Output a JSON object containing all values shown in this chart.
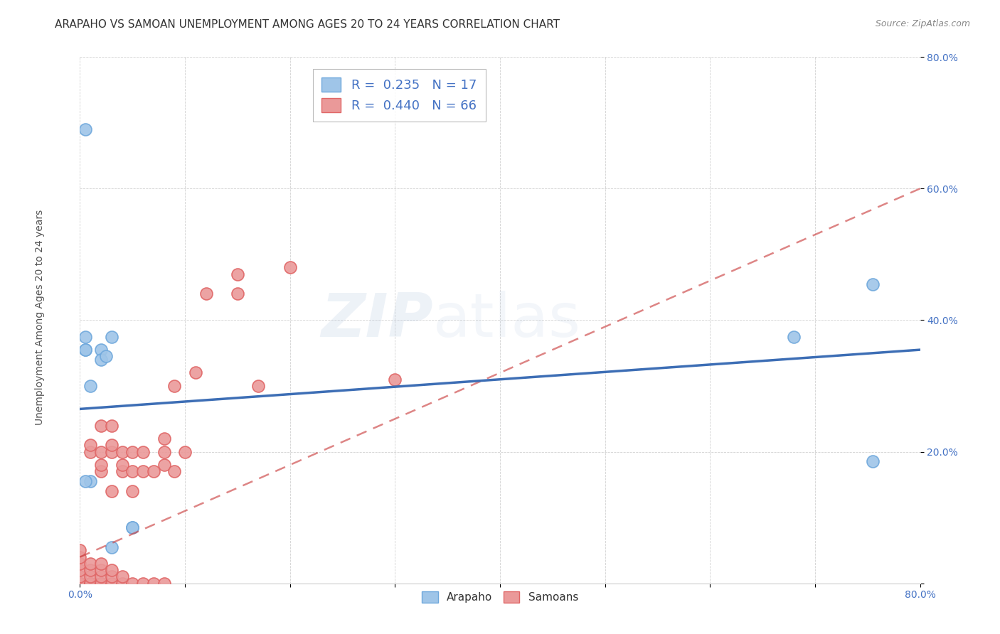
{
  "title": "ARAPAHO VS SAMOAN UNEMPLOYMENT AMONG AGES 20 TO 24 YEARS CORRELATION CHART",
  "source": "Source: ZipAtlas.com",
  "ylabel": "Unemployment Among Ages 20 to 24 years",
  "xlim": [
    0.0,
    0.8
  ],
  "ylim": [
    0.0,
    0.8
  ],
  "xticks": [
    0.0,
    0.1,
    0.2,
    0.3,
    0.4,
    0.5,
    0.6,
    0.7,
    0.8
  ],
  "yticks": [
    0.0,
    0.2,
    0.4,
    0.6,
    0.8
  ],
  "arapaho_color": "#9fc5e8",
  "samoan_color": "#ea9999",
  "arapaho_edge_color": "#6fa8dc",
  "samoan_edge_color": "#e06666",
  "arapaho_line_color": "#3d6eb5",
  "samoan_line_color": "#cc4444",
  "background_color": "#ffffff",
  "watermark_zip": "ZIP",
  "watermark_atlas": "atlas",
  "arapaho_R": 0.235,
  "arapaho_N": 17,
  "samoan_R": 0.44,
  "samoan_N": 66,
  "arapaho_x": [
    0.005,
    0.005,
    0.005,
    0.005,
    0.01,
    0.01,
    0.02,
    0.02,
    0.025,
    0.03,
    0.03,
    0.05,
    0.05,
    0.68,
    0.755,
    0.755,
    0.005
  ],
  "arapaho_y": [
    0.69,
    0.375,
    0.355,
    0.355,
    0.3,
    0.155,
    0.355,
    0.34,
    0.345,
    0.375,
    0.055,
    0.085,
    0.085,
    0.375,
    0.185,
    0.455,
    0.155
  ],
  "samoan_x": [
    0.0,
    0.0,
    0.0,
    0.0,
    0.0,
    0.0,
    0.0,
    0.0,
    0.0,
    0.0,
    0.0,
    0.0,
    0.0,
    0.01,
    0.01,
    0.01,
    0.01,
    0.01,
    0.01,
    0.01,
    0.01,
    0.02,
    0.02,
    0.02,
    0.02,
    0.02,
    0.02,
    0.02,
    0.02,
    0.02,
    0.02,
    0.03,
    0.03,
    0.03,
    0.03,
    0.03,
    0.03,
    0.03,
    0.04,
    0.04,
    0.04,
    0.04,
    0.04,
    0.05,
    0.05,
    0.05,
    0.05,
    0.06,
    0.06,
    0.06,
    0.07,
    0.07,
    0.08,
    0.08,
    0.08,
    0.08,
    0.09,
    0.09,
    0.1,
    0.11,
    0.12,
    0.15,
    0.15,
    0.17,
    0.2,
    0.3
  ],
  "samoan_y": [
    0.0,
    0.0,
    0.0,
    0.0,
    0.0,
    0.0,
    0.0,
    0.0,
    0.01,
    0.02,
    0.03,
    0.04,
    0.05,
    0.0,
    0.0,
    0.0,
    0.01,
    0.02,
    0.03,
    0.2,
    0.21,
    0.0,
    0.0,
    0.0,
    0.01,
    0.02,
    0.03,
    0.17,
    0.18,
    0.2,
    0.24,
    0.0,
    0.01,
    0.02,
    0.14,
    0.2,
    0.21,
    0.24,
    0.0,
    0.01,
    0.17,
    0.18,
    0.2,
    0.0,
    0.14,
    0.17,
    0.2,
    0.0,
    0.17,
    0.2,
    0.0,
    0.17,
    0.0,
    0.18,
    0.2,
    0.22,
    0.17,
    0.3,
    0.2,
    0.32,
    0.44,
    0.44,
    0.47,
    0.3,
    0.48,
    0.31
  ],
  "arapaho_line_x": [
    0.0,
    0.8
  ],
  "arapaho_line_y": [
    0.265,
    0.355
  ],
  "samoan_line_x": [
    0.0,
    0.8
  ],
  "samoan_line_y": [
    0.04,
    0.6
  ],
  "title_fontsize": 11,
  "axis_label_fontsize": 10,
  "tick_fontsize": 10,
  "legend_fontsize": 13
}
